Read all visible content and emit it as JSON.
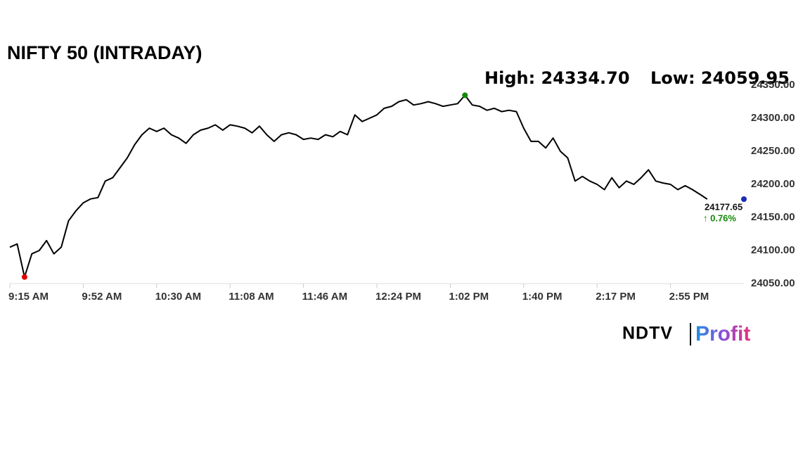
{
  "chart_data": {
    "type": "line",
    "title": "NIFTY 50 (INTRADAY)",
    "high_text": "High: 24334.70",
    "low_text": "Low: 24059.95",
    "change_text": "↑ 0.76%",
    "brand": "NDTV",
    "brand_suffix": "Profit",
    "color": "#000000",
    "high_color": "#138808",
    "low_color": "#e00000",
    "last_color": "#1a2bb8",
    "change_color": "#138808",
    "categories": [
      "9:15 AM",
      null,
      null,
      null,
      null,
      null,
      null,
      null,
      null,
      null,
      "9:52 AM",
      null,
      null,
      null,
      null,
      null,
      null,
      null,
      null,
      null,
      "10:30 AM",
      null,
      null,
      null,
      null,
      null,
      null,
      null,
      null,
      null,
      "11:08 AM",
      null,
      null,
      null,
      null,
      null,
      null,
      null,
      null,
      null,
      "11:46 AM",
      null,
      null,
      null,
      null,
      null,
      null,
      null,
      null,
      null,
      "12:24 PM",
      null,
      null,
      null,
      null,
      null,
      null,
      null,
      null,
      null,
      "1:02 PM",
      null,
      null,
      null,
      null,
      null,
      null,
      null,
      null,
      null,
      "1:40 PM",
      null,
      null,
      null,
      null,
      null,
      null,
      null,
      null,
      null,
      "2:17 PM",
      null,
      null,
      null,
      null,
      null,
      null,
      null,
      null,
      null,
      "2:55 PM",
      null,
      null,
      null,
      null,
      null,
      null,
      null,
      null,
      null,
      null
    ],
    "values": [
      24105,
      24110,
      24059.95,
      24095,
      24100,
      24115,
      24095,
      24105,
      24145,
      24160,
      24172,
      24178,
      24180,
      24205,
      24210,
      24225,
      24240,
      24260,
      24275,
      24285,
      24280,
      24285,
      24275,
      24270,
      24262,
      24275,
      24282,
      24285,
      24290,
      24282,
      24290,
      24288,
      24285,
      24278,
      24288,
      24275,
      24265,
      24275,
      24278,
      24275,
      24268,
      24270,
      24268,
      24275,
      24272,
      24280,
      24275,
      24305,
      24295,
      24300,
      24305,
      24315,
      24318,
      24325,
      24328,
      24320,
      24322,
      24325,
      24322,
      24318,
      24320,
      24322,
      24334.7,
      24320,
      24318,
      24312,
      24315,
      24310,
      24312,
      24310,
      24285,
      24265,
      24265,
      24255,
      24270,
      24250,
      24240,
      24205,
      24212,
      24205,
      24200,
      24192,
      24210,
      24195,
      24205,
      24200,
      24210,
      24222,
      24205,
      24202,
      24200,
      24192,
      24198,
      24192,
      24185,
      24177.65,
      null,
      null,
      null,
      null,
      null
    ],
    "ylim": [
      24050,
      24350
    ],
    "yticks": [
      {
        "value": 24050,
        "label": "24050.00"
      },
      {
        "value": 24100,
        "label": "24100.00"
      },
      {
        "value": 24150,
        "label": "24150.00"
      },
      {
        "value": 24200,
        "label": "24200.00"
      },
      {
        "value": 24250,
        "label": "24250.00"
      },
      {
        "value": 24300,
        "label": "24300.00"
      },
      {
        "value": 24350,
        "label": "24350.00"
      }
    ]
  }
}
